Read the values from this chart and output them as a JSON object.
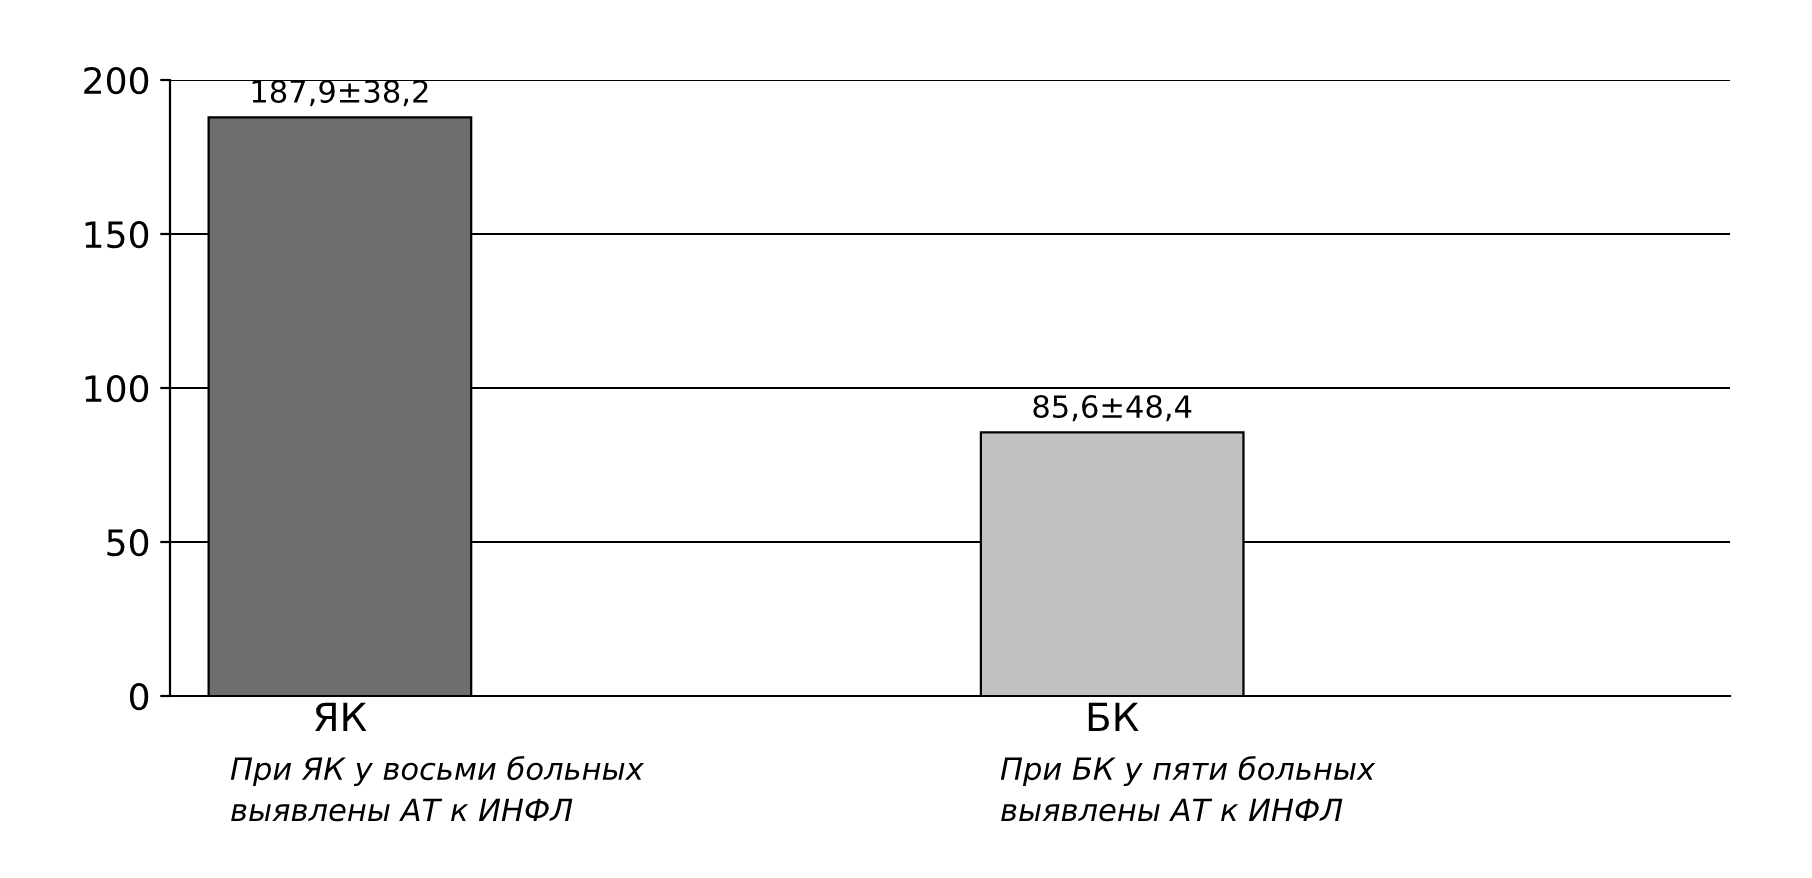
{
  "chart_data": {
    "type": "bar",
    "categories": [
      "ЯК",
      "БК"
    ],
    "values": [
      187.9,
      85.6
    ],
    "colors": [
      "#6d6e70",
      "#c0c1c3"
    ],
    "value_labels": [
      "187,9±38,2",
      "85,6±48,4"
    ],
    "ylim": [
      0,
      200
    ],
    "yticks": [
      0,
      50,
      100,
      150,
      200
    ],
    "grid": "y",
    "annotations": [
      "При ЯК у восьми больных\nвыявлены АТ к ИНФЛ",
      "При БК у пяти больных\nвыявлены АТ к ИНФЛ"
    ]
  }
}
